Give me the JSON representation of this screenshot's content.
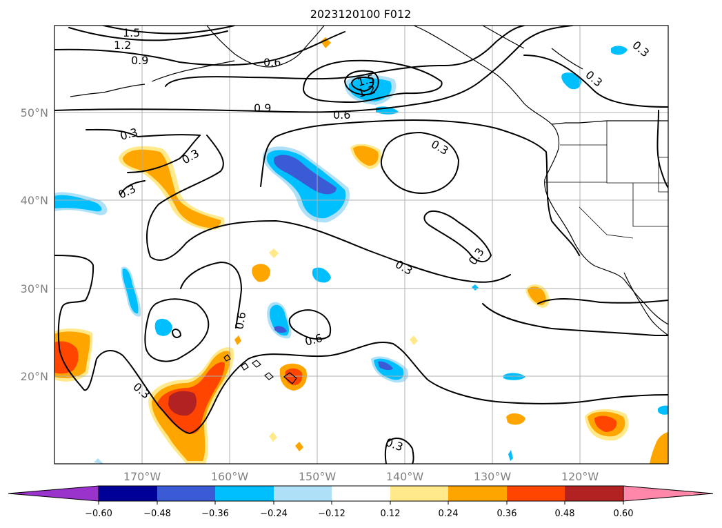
{
  "title": "2023120100 F012",
  "latitude_labels": [
    "50°N",
    "40°N",
    "30°N",
    "20°N"
  ],
  "longitude_labels": [
    "170°W",
    "160°W",
    "150°W",
    "140°W",
    "130°W",
    "120°W"
  ],
  "contour_labels": [
    "1.5",
    "1.2",
    "0.9",
    "0.6",
    "0.9",
    "0.6",
    "1.5",
    "1.2",
    "0.3",
    "0.3",
    "0.3",
    "0.3",
    "0.3",
    "0.3",
    "0.6",
    "0.6",
    "0.3",
    "0.3",
    "0.3",
    "0.3",
    "0.6"
  ],
  "colorbar": {
    "tick_labels": [
      "−0.60",
      "−0.48",
      "−0.36",
      "−0.24",
      "−0.12",
      "0.12",
      "0.24",
      "0.36",
      "0.48",
      "0.60"
    ],
    "colors": [
      "#9933cc",
      "#000099",
      "#3b5bd6",
      "#00bfff",
      "#aee0f8",
      "#ffffff",
      "#ffe98a",
      "#ffa500",
      "#ff4500",
      "#b22222",
      "#ff88aa"
    ]
  },
  "shading_colors": {
    "light_blue": "#aee0f8",
    "blue": "#00bfff",
    "dark_blue": "#3b5bd6",
    "yellow": "#ffe98a",
    "orange": "#ffa500",
    "red_orange": "#ff4500",
    "dark_red": "#b22222"
  }
}
